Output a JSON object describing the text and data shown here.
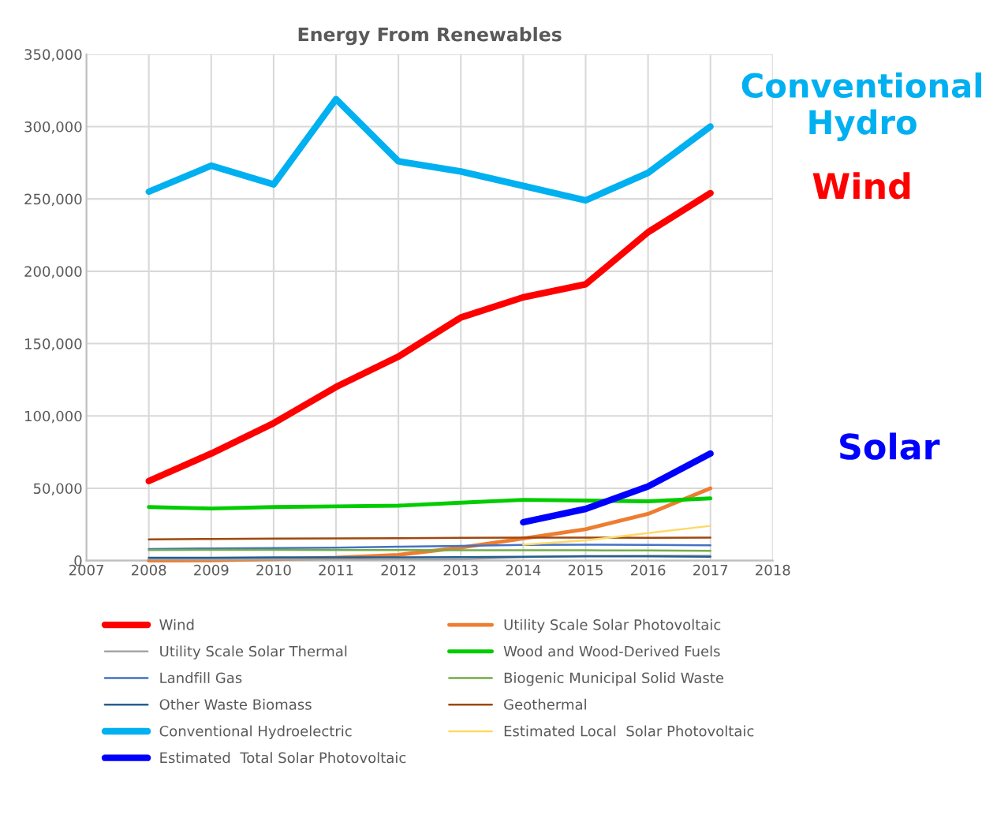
{
  "chart_data": {
    "type": "line",
    "title": "Energy From Renewables",
    "x": [
      2008,
      2009,
      2010,
      2011,
      2012,
      2013,
      2014,
      2015,
      2016,
      2017
    ],
    "series": [
      {
        "name": "Wind",
        "color": "#ff0000",
        "values": [
          55000,
          74000,
          95000,
          120000,
          141000,
          168000,
          182000,
          191000,
          227000,
          254000
        ]
      },
      {
        "name": "Utility Scale Solar Photovoltaic",
        "color": "#ed7d31",
        "values": [
          0,
          200,
          1000,
          2000,
          4000,
          9000,
          15300,
          21700,
          32300,
          50000
        ]
      },
      {
        "name": "Utility Scale Solar Thermal",
        "color": "#a5a5a5",
        "values": [
          900,
          800,
          800,
          800,
          900,
          900,
          2400,
          3200,
          3400,
          3300
        ]
      },
      {
        "name": "Wood and Wood-Derived Fuels",
        "color": "#00cc00",
        "values": [
          37000,
          36000,
          37000,
          37500,
          38000,
          40000,
          42000,
          41500,
          41000,
          43000
        ]
      },
      {
        "name": "Landfill Gas",
        "color": "#4472c4",
        "values": [
          8000,
          8400,
          8600,
          9000,
          9600,
          10200,
          10800,
          11000,
          10800,
          10600
        ]
      },
      {
        "name": "Biogenic Municipal Solid Waste",
        "color": "#70ad47",
        "values": [
          7300,
          7400,
          7400,
          7300,
          7300,
          7200,
          7200,
          7100,
          7000,
          6800
        ]
      },
      {
        "name": "Other Waste Biomass",
        "color": "#255e91",
        "values": [
          2000,
          2000,
          2200,
          2200,
          2300,
          2400,
          2700,
          2900,
          3000,
          2700
        ]
      },
      {
        "name": "Geothermal",
        "color": "#9e480e",
        "values": [
          14600,
          15000,
          15200,
          15300,
          15500,
          15800,
          15900,
          15900,
          15800,
          15900
        ]
      },
      {
        "name": "Conventional Hydroelectric",
        "color": "#00b0f0",
        "values": [
          255000,
          273000,
          260000,
          319000,
          276000,
          269000,
          259000,
          249000,
          268000,
          300000
        ]
      },
      {
        "name": "Estimated Local  Solar Photovoltaic",
        "color": "#ffd966",
        "values": [
          null,
          null,
          null,
          null,
          null,
          null,
          11000,
          14000,
          19000,
          24000
        ]
      },
      {
        "name": "Estimated  Total Solar Photovoltaic",
        "color": "#0000ff",
        "values": [
          null,
          null,
          null,
          null,
          null,
          null,
          26500,
          35700,
          51300,
          74000
        ]
      }
    ],
    "xlim": [
      2007,
      2018
    ],
    "xticks": [
      2007,
      2008,
      2009,
      2010,
      2011,
      2012,
      2013,
      2014,
      2015,
      2016,
      2017,
      2018
    ],
    "ylim": [
      0,
      350000
    ],
    "yticks": [
      {
        "value": 0,
        "label": "0"
      },
      {
        "value": 50000,
        "label": "50,000"
      },
      {
        "value": 100000,
        "label": "100,000"
      },
      {
        "value": 150000,
        "label": "150,000"
      },
      {
        "value": 200000,
        "label": "200,000"
      },
      {
        "value": 250000,
        "label": "250,000"
      },
      {
        "value": 300000,
        "label": "300,000"
      },
      {
        "value": 350000,
        "label": "350,000"
      }
    ],
    "annotations": [
      "Conventional Hydro",
      "Wind",
      "Solar"
    ],
    "grid": true,
    "legend": "bottom",
    "marker": "none",
    "line_style": "solid"
  }
}
